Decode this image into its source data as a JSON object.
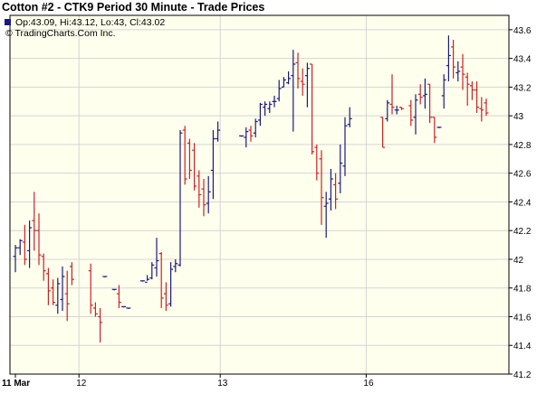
{
  "chart_data": {
    "type": "ohlc",
    "title": "Cotton #2 - CTK9 Period 30 Minute - Trade Prices",
    "legend": {
      "ohlc_text": "Op:43.09, Hi:43.12, Lo:43, Cl:43.02",
      "copyright": "© TradingCharts.Com Inc.",
      "swatch_color": "#1a1a7a"
    },
    "ylim": [
      41.2,
      43.7
    ],
    "yticks": [
      "41.2",
      "41.4",
      "41.6",
      "41.8",
      "42",
      "42.2",
      "42.4",
      "42.6",
      "42.8",
      "43",
      "43.2",
      "43.4",
      "43.6"
    ],
    "x_labels": [
      {
        "label": "11 Mar",
        "bar": 0
      },
      {
        "label": "12",
        "bar": 13.5
      },
      {
        "label": "13",
        "bar": 43.5
      },
      {
        "label": "16",
        "bar": 74.5
      }
    ],
    "colors": {
      "up": "#1a1a7a",
      "down": "#cc2222",
      "plot_bg": "#ffffee",
      "grid": "#d4d4d4"
    },
    "bars": [
      {
        "o": 42.02,
        "h": 42.1,
        "l": 41.91,
        "c": 42.08
      },
      {
        "o": 42.08,
        "h": 42.14,
        "l": 42.03,
        "c": 42.13
      },
      {
        "o": 42.12,
        "h": 42.24,
        "l": 41.96,
        "c": 42.0
      },
      {
        "o": 42.06,
        "h": 42.27,
        "l": 41.94,
        "c": 42.22
      },
      {
        "o": 42.27,
        "h": 42.47,
        "l": 42.06,
        "c": 42.2
      },
      {
        "o": 42.2,
        "h": 42.32,
        "l": 41.96,
        "c": 42.03
      },
      {
        "o": 42.02,
        "h": 42.04,
        "l": 41.85,
        "c": 41.92
      },
      {
        "o": 41.9,
        "h": 41.94,
        "l": 41.68,
        "c": 41.78
      },
      {
        "o": 41.8,
        "h": 41.86,
        "l": 41.68,
        "c": 41.7
      },
      {
        "o": 41.68,
        "h": 41.87,
        "l": 41.62,
        "c": 41.83
      },
      {
        "o": 41.72,
        "h": 41.95,
        "l": 41.64,
        "c": 41.88
      },
      {
        "o": 41.76,
        "h": 41.92,
        "l": 41.57,
        "c": 41.69
      },
      {
        "o": 41.95,
        "h": 41.98,
        "l": 41.82,
        "c": 41.86
      },
      null,
      null,
      null,
      {
        "o": 41.92,
        "h": 41.97,
        "l": 41.62,
        "c": 41.68
      },
      {
        "o": 41.66,
        "h": 41.7,
        "l": 41.6,
        "c": 41.62
      },
      {
        "o": 41.6,
        "h": 41.66,
        "l": 41.42,
        "c": 41.56
      },
      {
        "o": 41.88,
        "h": 41.88,
        "l": 41.88,
        "c": 41.88
      },
      null,
      {
        "o": 41.79,
        "h": 41.79,
        "l": 41.79,
        "c": 41.79
      },
      {
        "o": 41.76,
        "h": 41.82,
        "l": 41.66,
        "c": 41.7
      },
      {
        "o": 41.67,
        "h": 41.67,
        "l": 41.67,
        "c": 41.67
      },
      {
        "o": 41.66,
        "h": 41.66,
        "l": 41.66,
        "c": 41.66
      },
      null,
      null,
      {
        "o": 41.85,
        "h": 41.85,
        "l": 41.85,
        "c": 41.85
      },
      {
        "o": 41.84,
        "h": 41.89,
        "l": 41.85,
        "c": 41.86
      },
      {
        "o": 41.87,
        "h": 41.98,
        "l": 41.86,
        "c": 41.96
      },
      {
        "o": 41.94,
        "h": 42.15,
        "l": 41.88,
        "c": 41.99
      },
      {
        "o": 42.04,
        "h": 42.05,
        "l": 41.66,
        "c": 41.73
      },
      {
        "o": 41.76,
        "h": 41.84,
        "l": 41.64,
        "c": 41.68
      },
      {
        "o": 41.69,
        "h": 41.98,
        "l": 41.67,
        "c": 41.93
      },
      {
        "o": 41.95,
        "h": 42.0,
        "l": 41.91,
        "c": 41.97
      },
      {
        "o": 41.96,
        "h": 42.9,
        "l": 41.95,
        "c": 42.88
      },
      {
        "o": 42.9,
        "h": 42.93,
        "l": 42.52,
        "c": 42.56
      },
      {
        "o": 42.81,
        "h": 42.84,
        "l": 42.56,
        "c": 42.62
      },
      {
        "o": 42.76,
        "h": 42.81,
        "l": 42.48,
        "c": 42.51
      },
      {
        "o": 42.58,
        "h": 42.62,
        "l": 42.36,
        "c": 42.45
      },
      {
        "o": 42.49,
        "h": 42.56,
        "l": 42.3,
        "c": 42.38
      },
      {
        "o": 42.39,
        "h": 42.58,
        "l": 42.32,
        "c": 42.47
      },
      {
        "o": 42.62,
        "h": 42.9,
        "l": 42.42,
        "c": 42.84
      },
      {
        "o": 42.84,
        "h": 42.96,
        "l": 42.82,
        "c": 42.9
      },
      null,
      null,
      null,
      null,
      {
        "o": 42.86,
        "h": 42.86,
        "l": 42.86,
        "c": 42.86
      },
      {
        "o": 42.85,
        "h": 42.92,
        "l": 42.78,
        "c": 42.89
      },
      {
        "o": 42.9,
        "h": 42.93,
        "l": 42.82,
        "c": 42.86
      },
      {
        "o": 42.88,
        "h": 42.98,
        "l": 42.85,
        "c": 42.96
      },
      {
        "o": 42.97,
        "h": 43.09,
        "l": 42.93,
        "c": 43.08
      },
      {
        "o": 43.06,
        "h": 43.1,
        "l": 43.0,
        "c": 43.08
      },
      {
        "o": 43.05,
        "h": 43.1,
        "l": 43.02,
        "c": 43.08
      },
      {
        "o": 43.1,
        "h": 43.14,
        "l": 43.06,
        "c": 43.1
      },
      {
        "o": 43.12,
        "h": 43.25,
        "l": 43.1,
        "c": 43.19
      },
      {
        "o": 43.2,
        "h": 43.27,
        "l": 43.2,
        "c": 43.25
      },
      {
        "o": 43.23,
        "h": 43.31,
        "l": 43.22,
        "c": 43.26
      },
      {
        "o": 43.28,
        "h": 43.46,
        "l": 42.89,
        "c": 43.36
      },
      {
        "o": 43.37,
        "h": 43.44,
        "l": 43.19,
        "c": 43.26
      },
      {
        "o": 43.24,
        "h": 43.33,
        "l": 43.14,
        "c": 43.22
      },
      {
        "o": 43.28,
        "h": 43.37,
        "l": 43.06,
        "c": 43.33
      },
      {
        "o": 43.36,
        "h": 43.36,
        "l": 42.73,
        "c": 42.75
      },
      {
        "o": 42.78,
        "h": 42.8,
        "l": 42.55,
        "c": 42.6
      },
      {
        "o": 42.7,
        "h": 42.76,
        "l": 42.24,
        "c": 42.43
      },
      {
        "o": 42.37,
        "h": 42.47,
        "l": 42.15,
        "c": 42.39
      },
      {
        "o": 42.42,
        "h": 42.63,
        "l": 42.34,
        "c": 42.56
      },
      {
        "o": 42.52,
        "h": 42.6,
        "l": 42.35,
        "c": 42.42
      },
      {
        "o": 42.53,
        "h": 42.8,
        "l": 42.46,
        "c": 42.67
      },
      {
        "o": 42.65,
        "h": 42.99,
        "l": 42.58,
        "c": 42.93
      },
      {
        "o": 42.94,
        "h": 43.06,
        "l": 42.92,
        "c": 42.98
      },
      null,
      null,
      null,
      null,
      null,
      null,
      {
        "o": 42.99,
        "h": 42.99,
        "l": 42.78,
        "c": 42.78
      },
      {
        "o": 42.98,
        "h": 43.11,
        "l": 42.96,
        "c": 43.09
      },
      {
        "o": 43.08,
        "h": 43.29,
        "l": 43.01,
        "c": 43.06
      },
      {
        "o": 43.04,
        "h": 43.07,
        "l": 43.01,
        "c": 43.04
      },
      {
        "o": 43.06,
        "h": 43.06,
        "l": 43.04,
        "c": 43.05
      },
      null,
      {
        "o": 43.07,
        "h": 43.11,
        "l": 42.93,
        "c": 42.97
      },
      {
        "o": 42.99,
        "h": 43.15,
        "l": 42.87,
        "c": 43.11
      },
      {
        "o": 43.15,
        "h": 43.22,
        "l": 43.08,
        "c": 43.13
      },
      {
        "o": 43.14,
        "h": 43.26,
        "l": 43.05,
        "c": 43.15
      },
      {
        "o": 43.22,
        "h": 43.22,
        "l": 42.95,
        "c": 42.99
      },
      {
        "o": 42.99,
        "h": 42.99,
        "l": 42.81,
        "c": 42.85
      },
      {
        "o": 42.92,
        "h": 42.92,
        "l": 42.92,
        "c": 42.92
      },
      {
        "o": 43.14,
        "h": 43.29,
        "l": 43.05,
        "c": 43.25
      },
      {
        "o": 43.35,
        "h": 43.56,
        "l": 43.24,
        "c": 43.42
      },
      {
        "o": 43.48,
        "h": 43.53,
        "l": 43.26,
        "c": 43.34
      },
      {
        "o": 43.3,
        "h": 43.38,
        "l": 43.24,
        "c": 43.31
      },
      {
        "o": 43.34,
        "h": 43.43,
        "l": 43.18,
        "c": 43.29
      },
      {
        "o": 43.27,
        "h": 43.3,
        "l": 43.07,
        "c": 43.22
      },
      {
        "o": 43.21,
        "h": 43.24,
        "l": 43.11,
        "c": 43.18
      },
      {
        "o": 43.18,
        "h": 43.24,
        "l": 43.02,
        "c": 43.06
      },
      {
        "o": 43.05,
        "h": 43.13,
        "l": 42.96,
        "c": 43.04
      },
      {
        "o": 43.09,
        "h": 43.12,
        "l": 43.0,
        "c": 43.02
      }
    ]
  }
}
